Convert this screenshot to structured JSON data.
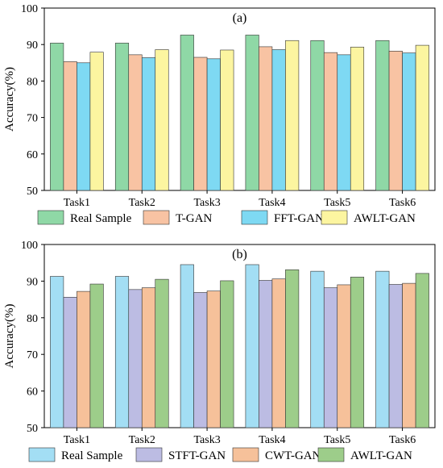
{
  "chart_data": [
    {
      "type": "bar",
      "title": "(a)",
      "ylabel": "Accuracy(%)",
      "xlabel": "",
      "ylim": [
        50,
        100
      ],
      "yticks": [
        50,
        60,
        70,
        80,
        90,
        100
      ],
      "categories": [
        "Task1",
        "Task2",
        "Task3",
        "Task4",
        "Task5",
        "Task6"
      ],
      "series": [
        {
          "name": "Real Sample",
          "color": "#8fd8a6",
          "values": [
            90.4,
            90.4,
            92.6,
            92.6,
            91.1,
            91.1
          ]
        },
        {
          "name": "T-GAN",
          "color": "#f8c3a3",
          "values": [
            85.3,
            87.2,
            86.5,
            89.4,
            87.8,
            88.2
          ]
        },
        {
          "name": "FFT-GAN",
          "color": "#7ed9f3",
          "values": [
            85.0,
            86.4,
            86.1,
            88.6,
            87.2,
            87.7
          ]
        },
        {
          "name": "AWLT-GAN",
          "color": "#fcf5a0",
          "values": [
            87.9,
            88.6,
            88.5,
            91.1,
            89.3,
            89.8
          ]
        }
      ],
      "legend": "bottom",
      "grid": false
    },
    {
      "type": "bar",
      "title": "(b)",
      "ylabel": "Accuracy(%)",
      "xlabel": "",
      "ylim": [
        50,
        100
      ],
      "yticks": [
        50,
        60,
        70,
        80,
        90,
        100
      ],
      "categories": [
        "Task1",
        "Task2",
        "Task3",
        "Task4",
        "Task5",
        "Task6"
      ],
      "series": [
        {
          "name": "Real Sample",
          "color": "#a3def4",
          "values": [
            91.3,
            91.3,
            94.5,
            94.5,
            92.7,
            92.7
          ]
        },
        {
          "name": "STFT-GAN",
          "color": "#bcbce3",
          "values": [
            85.6,
            87.7,
            86.9,
            90.2,
            88.2,
            89.1
          ]
        },
        {
          "name": "CWT-GAN",
          "color": "#f6c19a",
          "values": [
            87.2,
            88.2,
            87.3,
            90.6,
            89.0,
            89.4
          ]
        },
        {
          "name": "AWLT-GAN",
          "color": "#9dcd8a",
          "values": [
            89.2,
            90.5,
            90.1,
            93.1,
            91.1,
            92.1
          ]
        }
      ],
      "legend": "bottom",
      "grid": false
    }
  ]
}
